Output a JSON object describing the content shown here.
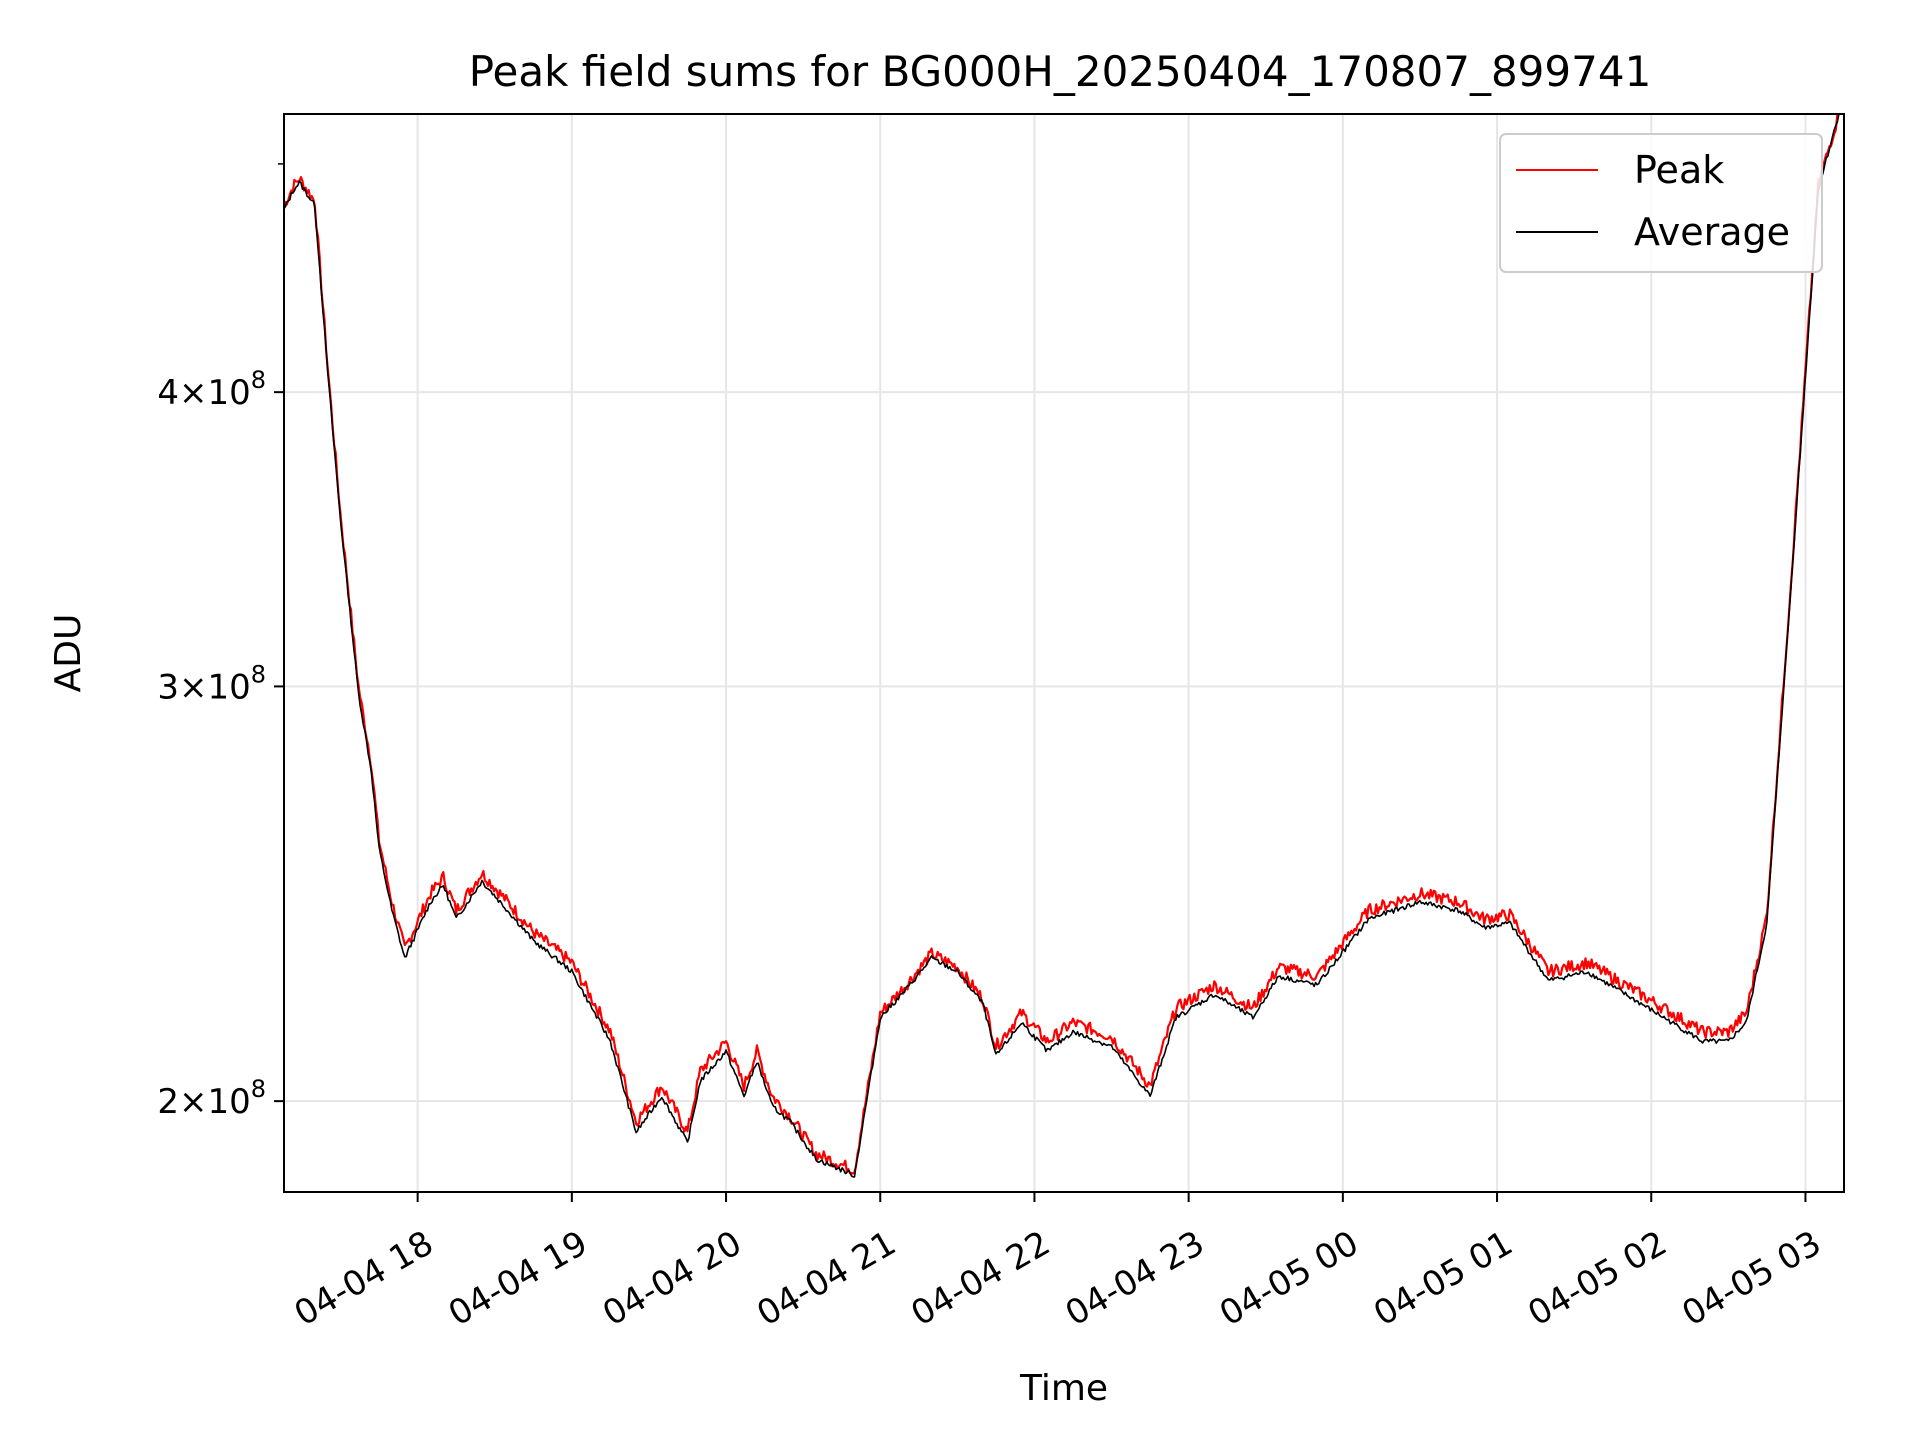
{
  "chart_data": {
    "type": "line",
    "title": "Peak field sums for BG000H_20250404_170807_899741",
    "xlabel": "Time",
    "ylabel": "ADU",
    "y_scale": "log",
    "xlim": [
      "2025-04-04 17:08",
      "2025-04-05 03:15"
    ],
    "ylim": [
      183000000,
      525000000
    ],
    "grid": true,
    "legend_position": "top-right",
    "x_ticks": [
      "04-04 18",
      "04-04 19",
      "04-04 20",
      "04-04 21",
      "04-04 22",
      "04-04 23",
      "04-05 00",
      "04-05 01",
      "04-05 02",
      "04-05 03"
    ],
    "y_ticks": [
      {
        "value": 200000000,
        "mantissa": "2",
        "exp": "8"
      },
      {
        "value": 300000000,
        "mantissa": "3",
        "exp": "8"
      },
      {
        "value": 400000000,
        "mantissa": "4",
        "exp": "8"
      }
    ],
    "x": [
      "2025-04-04 17:08",
      "2025-04-04 17:12",
      "2025-04-04 17:14",
      "2025-04-04 17:20",
      "2025-04-04 17:25",
      "2025-04-04 17:30",
      "2025-04-04 17:37",
      "2025-04-04 17:42",
      "2025-04-04 17:45",
      "2025-04-04 17:50",
      "2025-04-04 17:55",
      "2025-04-04 18:05",
      "2025-04-04 18:10",
      "2025-04-04 18:15",
      "2025-04-04 18:25",
      "2025-04-04 18:35",
      "2025-04-04 18:45",
      "2025-04-04 19:00",
      "2025-04-04 19:15",
      "2025-04-04 19:25",
      "2025-04-04 19:35",
      "2025-04-04 19:45",
      "2025-04-04 19:50",
      "2025-04-04 20:00",
      "2025-04-04 20:07",
      "2025-04-04 20:12",
      "2025-04-04 20:18",
      "2025-04-04 20:25",
      "2025-04-04 20:35",
      "2025-04-04 20:50",
      "2025-04-04 21:00",
      "2025-04-04 21:10",
      "2025-04-04 21:20",
      "2025-04-04 21:30",
      "2025-04-04 21:40",
      "2025-04-04 21:45",
      "2025-04-04 21:55",
      "2025-04-04 22:05",
      "2025-04-04 22:15",
      "2025-04-04 22:30",
      "2025-04-04 22:45",
      "2025-04-04 22:55",
      "2025-04-04 23:10",
      "2025-04-04 23:25",
      "2025-04-04 23:35",
      "2025-04-04 23:50",
      "2025-04-05 00:10",
      "2025-04-05 00:30",
      "2025-04-05 00:45",
      "2025-04-05 00:55",
      "2025-04-05 01:05",
      "2025-04-05 01:20",
      "2025-04-05 01:35",
      "2025-04-05 01:50",
      "2025-04-05 02:05",
      "2025-04-05 02:20",
      "2025-04-05 02:30",
      "2025-04-05 02:37",
      "2025-04-05 02:45",
      "2025-04-05 02:55",
      "2025-04-05 03:05",
      "2025-04-05 03:13"
    ],
    "series": [
      {
        "name": "Peak",
        "color": "#ff0000",
        "values": [
          480000000,
          490000000,
          493000000,
          482000000,
          410000000,
          355000000,
          300000000,
          278000000,
          258000000,
          243000000,
          232000000,
          245000000,
          249000000,
          241000000,
          250000000,
          243000000,
          236000000,
          229000000,
          214000000,
          196000000,
          203000000,
          194000000,
          206000000,
          212000000,
          203000000,
          210000000,
          201000000,
          197000000,
          190000000,
          187000000,
          218000000,
          224000000,
          231000000,
          228000000,
          221000000,
          211000000,
          218000000,
          212000000,
          216000000,
          213000000,
          203000000,
          219000000,
          224000000,
          219000000,
          228000000,
          226000000,
          241000000,
          245000000,
          243000000,
          239000000,
          240000000,
          227000000,
          229000000,
          224000000,
          219000000,
          214000000,
          214000000,
          218000000,
          240000000,
          340000000,
          490000000,
          525000000
        ]
      },
      {
        "name": "Average",
        "color": "#000000",
        "values": [
          478000000,
          488000000,
          491000000,
          480000000,
          408000000,
          353000000,
          298000000,
          276000000,
          256000000,
          241000000,
          230000000,
          243000000,
          247000000,
          239000000,
          248000000,
          241000000,
          234000000,
          227000000,
          212000000,
          194000000,
          201000000,
          192000000,
          204000000,
          210000000,
          201000000,
          208000000,
          199000000,
          196000000,
          189000000,
          186000000,
          217000000,
          223000000,
          230000000,
          227000000,
          220000000,
          209000000,
          216000000,
          210000000,
          214000000,
          211000000,
          201000000,
          217000000,
          222000000,
          217000000,
          226000000,
          224000000,
          239000000,
          243000000,
          241000000,
          237000000,
          238000000,
          225000000,
          227000000,
          222000000,
          217000000,
          212000000,
          212000000,
          216000000,
          238000000,
          338000000,
          488000000,
          525000000
        ]
      }
    ]
  }
}
